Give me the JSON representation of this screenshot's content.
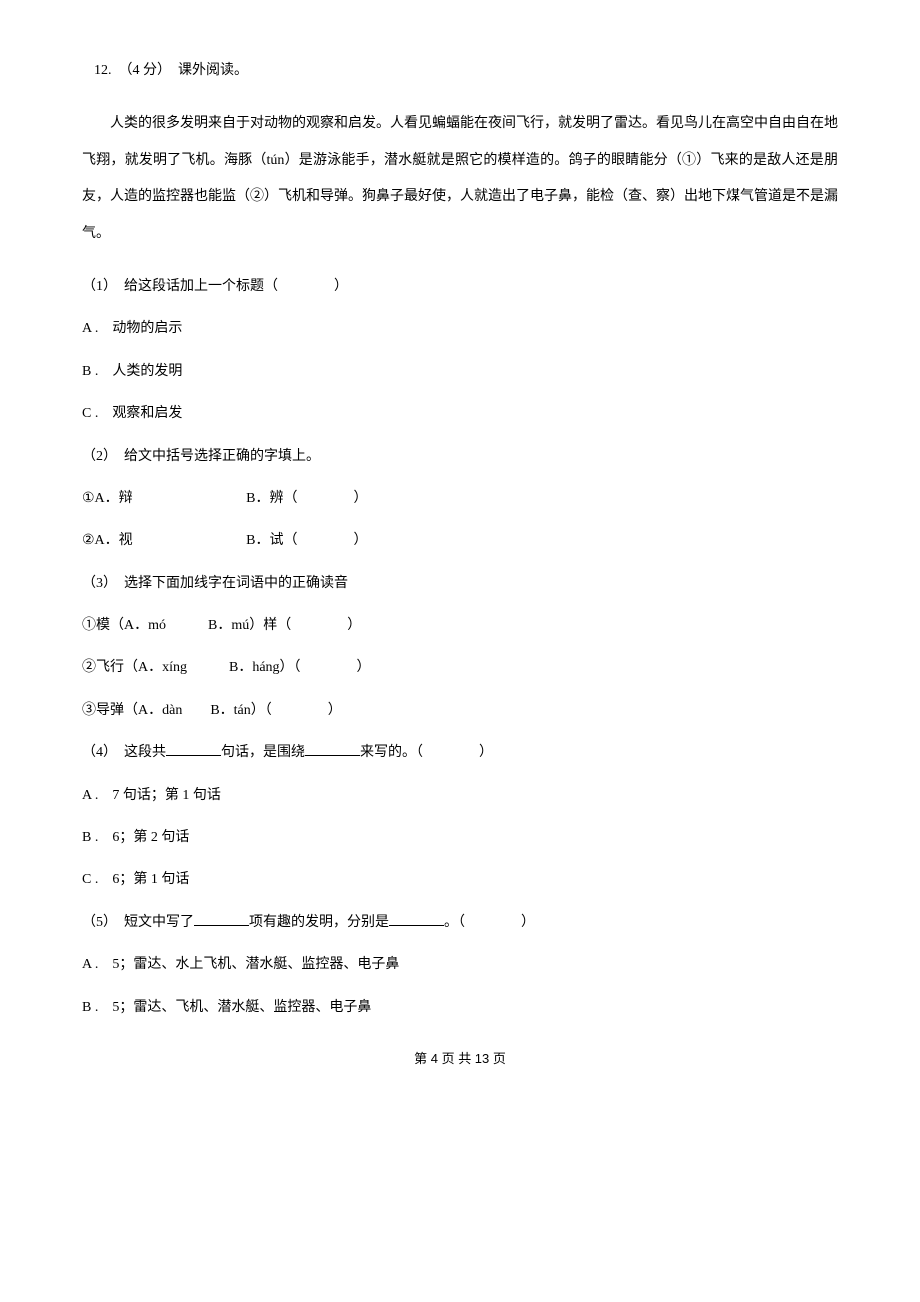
{
  "question_header": "12.　（4 分）　课外阅读。",
  "passage": "人类的很多发明来自于对动物的观察和启发。人看见蝙蝠能在夜间飞行，就发明了雷达。看见鸟儿在高空中自由自在地飞翔，就发明了飞机。海豚（tún）是游泳能手，潜水艇就是照它的模样造的。鸽子的眼睛能分（①）飞来的是敌人还是朋友，人造的监控器也能监（②）飞机和导弹。狗鼻子最好使，人就造出了电子鼻，能检（查、察）出地下煤气管道是不是漏气。",
  "q1": {
    "prompt": "（1）　给这段话加上一个标题（　　　　）",
    "opt_a": "A .　动物的启示",
    "opt_b": "B .　人类的发明",
    "opt_c": "C .　观察和启发"
  },
  "q2": {
    "prompt": "（2）　给文中括号选择正确的字填上。",
    "line1_a": "①A．辩",
    "line1_b": "B．辨（　　　　）",
    "line2_a": "②A．视",
    "line2_b": "B．试（　　　　）"
  },
  "q3": {
    "prompt": "（3）　选择下面加线字在词语中的正确读音",
    "line1": "①模（A．mó　　　B．mú）样（　　　　）",
    "line2": "②飞行（A．xíng　　　B．háng）（　　　　）",
    "line3": "③导弹（A．dàn　　B．tán）（　　　　）"
  },
  "q4": {
    "prompt_before": "（4）　这段共",
    "prompt_mid": "句话，是围绕",
    "prompt_after": "来写的。（　　　　）",
    "opt_a": "A .　7 句话；第 1 句话",
    "opt_b": "B .　6；第 2 句话",
    "opt_c": "C .　6；第 1 句话"
  },
  "q5": {
    "prompt_before": "（5）　短文中写了",
    "prompt_mid": "项有趣的发明，分别是",
    "prompt_after": "。（　　　　）",
    "opt_a": "A .　5；雷达、水上飞机、潜水艇、监控器、电子鼻",
    "opt_b": "B .　5；雷达、飞机、潜水艇、监控器、电子鼻"
  },
  "footer": "第 4 页 共 13 页"
}
